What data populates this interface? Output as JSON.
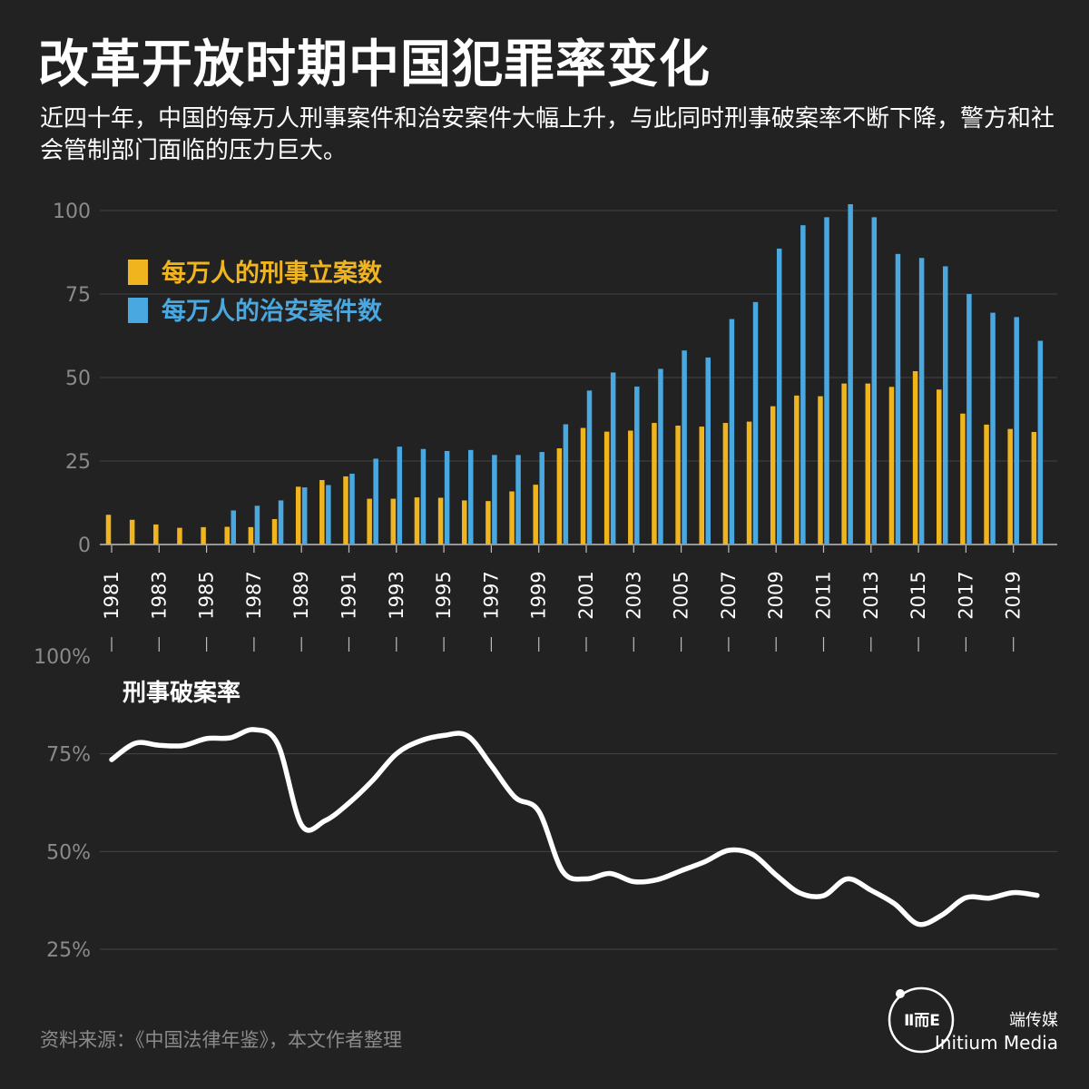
{
  "title": "改革开放时期中国犯罪率变化",
  "subtitle": "近四十年，中国的每万人刑事案件和治安案件大幅上升，与此同时刑事破案率不断下降，警方和社会管制部门面临的压力巨大。",
  "source": "资料来源：《中国法律年鉴》，本文作者整理",
  "brand": {
    "cn": "端传媒",
    "en": "Initium Media",
    "logo_mark": "Ⅱ而E"
  },
  "colors": {
    "background": "#222222",
    "criminal": "#f0b51e",
    "public_security": "#4aa8e0",
    "clearance_line": "#ffffff",
    "axis_text": "#8a8a8a",
    "grid": "#444444"
  },
  "chart_data": [
    {
      "type": "bar",
      "x": [
        1981,
        1982,
        1983,
        1984,
        1985,
        1986,
        1987,
        1988,
        1989,
        1990,
        1991,
        1992,
        1993,
        1994,
        1995,
        1996,
        1997,
        1998,
        1999,
        2000,
        2001,
        2002,
        2003,
        2004,
        2005,
        2006,
        2007,
        2008,
        2009,
        2010,
        2011,
        2012,
        2013,
        2014,
        2015,
        2016,
        2017,
        2018,
        2019,
        2020
      ],
      "x_tick_labels": [
        "1981",
        "1983",
        "1985",
        "1987",
        "1989",
        "1991",
        "1993",
        "1995",
        "1997",
        "1999",
        "2001",
        "2003",
        "2005",
        "2007",
        "2009",
        "2011",
        "2013",
        "2015",
        "2017",
        "2019"
      ],
      "y_ticks": [
        0,
        25,
        50,
        75,
        100
      ],
      "ylim": [
        0,
        102
      ],
      "legend_position": "top-left",
      "grid": true,
      "series": [
        {
          "name": "每万人的刑事立案数",
          "color": "#f0b51e",
          "values": [
            8.9,
            7.4,
            6.0,
            5.0,
            5.2,
            5.3,
            5.2,
            7.6,
            17.3,
            19.3,
            20.4,
            13.7,
            13.7,
            14.1,
            14.0,
            13.2,
            13.0,
            15.9,
            17.9,
            28.8,
            34.9,
            33.8,
            34.1,
            36.4,
            35.6,
            35.3,
            36.4,
            36.8,
            41.4,
            44.6,
            44.4,
            48.2,
            48.2,
            47.2,
            51.9,
            46.4,
            39.2,
            35.9,
            34.6,
            33.7
          ]
        },
        {
          "name": "每万人的治安案件数",
          "color": "#4aa8e0",
          "values": [
            null,
            null,
            null,
            null,
            null,
            10.2,
            11.6,
            13.2,
            17.1,
            17.8,
            21.2,
            25.7,
            29.3,
            28.6,
            28.0,
            28.3,
            26.8,
            26.8,
            27.7,
            36.0,
            46.1,
            51.5,
            47.3,
            52.6,
            58.1,
            56.0,
            67.5,
            72.6,
            88.6,
            95.6,
            98.0,
            101.9,
            98.0,
            87.0,
            85.8,
            83.3,
            75.0,
            69.4,
            68.1,
            61.0
          ]
        }
      ]
    },
    {
      "type": "line",
      "title": "刑事破案率",
      "x": [
        1981,
        1982,
        1983,
        1984,
        1985,
        1986,
        1987,
        1988,
        1989,
        1990,
        1991,
        1992,
        1993,
        1994,
        1995,
        1996,
        1997,
        1998,
        1999,
        2000,
        2001,
        2002,
        2003,
        2004,
        2005,
        2006,
        2007,
        2008,
        2009,
        2010,
        2011,
        2012,
        2013,
        2014,
        2015,
        2016,
        2017,
        2018,
        2019,
        2020
      ],
      "y_ticks": [
        "25%",
        "50%",
        "75%",
        "100%"
      ],
      "ylim": [
        25,
        100
      ],
      "unit": "%",
      "grid": true,
      "series": [
        {
          "name": "刑事破案率",
          "color": "#ffffff",
          "values": [
            73.5,
            77.7,
            77.2,
            77.1,
            78.9,
            79.1,
            81.2,
            77.5,
            56.8,
            57.9,
            62.4,
            68.2,
            75.0,
            78.3,
            79.7,
            79.6,
            72.0,
            63.9,
            60.3,
            45.0,
            43.0,
            44.4,
            42.3,
            42.8,
            45.1,
            47.4,
            50.3,
            49.3,
            44.0,
            39.4,
            38.7,
            43.0,
            40.1,
            36.6,
            31.4,
            33.8,
            38.2,
            38.1,
            39.5,
            38.8
          ]
        }
      ]
    }
  ]
}
